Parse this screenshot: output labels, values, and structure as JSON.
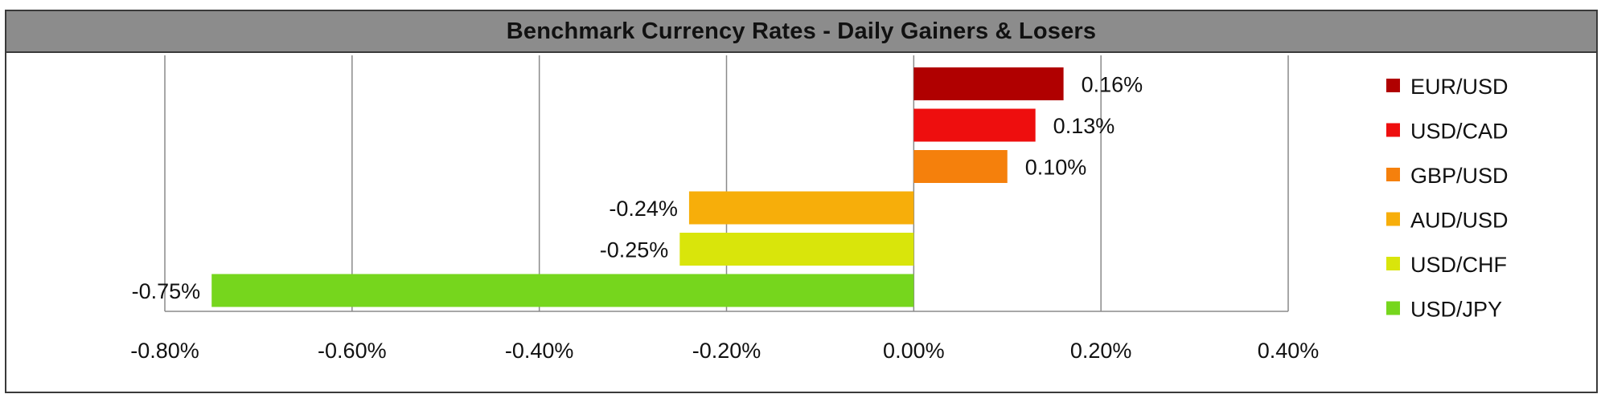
{
  "chart_data": {
    "type": "bar",
    "orientation": "horizontal",
    "title": "Benchmark Currency Rates - Daily Gainers & Losers",
    "categories": [
      "EUR/USD",
      "USD/CAD",
      "GBP/USD",
      "AUD/USD",
      "USD/CHF",
      "USD/JPY"
    ],
    "values": [
      0.16,
      0.13,
      0.1,
      -0.24,
      -0.25,
      -0.75
    ],
    "value_labels": [
      "0.16%",
      "0.13%",
      "0.10%",
      "-0.24%",
      "-0.25%",
      "-0.75%"
    ],
    "colors": [
      "#b00000",
      "#ee0e0e",
      "#f5800c",
      "#f7ae0a",
      "#d9e50b",
      "#76d61d"
    ],
    "xlim": [
      -0.8,
      0.4
    ],
    "xticks": [
      -0.8,
      -0.6,
      -0.4,
      -0.2,
      0.0,
      0.2,
      0.4
    ],
    "xtick_labels": [
      "-0.80%",
      "-0.60%",
      "-0.40%",
      "-0.20%",
      "0.00%",
      "0.20%",
      "0.40%"
    ],
    "grid": true,
    "legend_position": "right",
    "legend": [
      "EUR/USD",
      "USD/CAD",
      "GBP/USD",
      "AUD/USD",
      "USD/CHF",
      "USD/JPY"
    ]
  }
}
